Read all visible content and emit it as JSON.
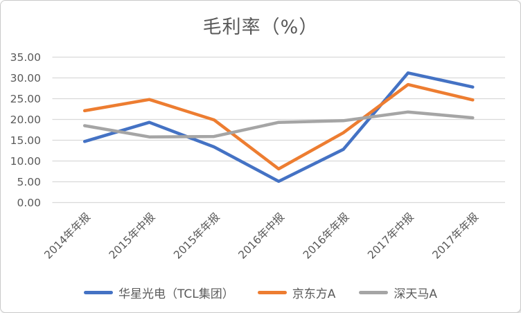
{
  "window": {
    "background": "#ffffff",
    "border_color": "#c9c9c9"
  },
  "chart_data": {
    "type": "line",
    "title": "毛利率（%）",
    "categories": [
      "2014年年报",
      "2015年中报",
      "2015年年报",
      "2016年中报",
      "2016年年报",
      "2017年中报",
      "2017年年报"
    ],
    "series": [
      {
        "name": "华星光电（TCL集团）",
        "color": "#4472C4",
        "values": [
          14.7,
          19.3,
          13.4,
          5.1,
          12.8,
          31.2,
          27.8
        ]
      },
      {
        "name": "京东方A",
        "color": "#ED7D31",
        "values": [
          22.1,
          24.8,
          19.9,
          8.1,
          16.8,
          28.4,
          24.7
        ]
      },
      {
        "name": "深天马A",
        "color": "#A5A5A5",
        "values": [
          18.5,
          15.8,
          15.9,
          19.3,
          19.7,
          21.8,
          20.4
        ]
      }
    ],
    "y_axis": {
      "min": 0,
      "max": 35,
      "step": 5,
      "tick_labels": [
        "0.00",
        "5.00",
        "10.00",
        "15.00",
        "20.00",
        "25.00",
        "30.00",
        "35.00"
      ]
    },
    "x_axis": {
      "label_rotation_degrees": 45
    },
    "grid": true,
    "gridline_color": "#D9D9D9",
    "text_color": "#595959",
    "legend_position": "bottom"
  }
}
